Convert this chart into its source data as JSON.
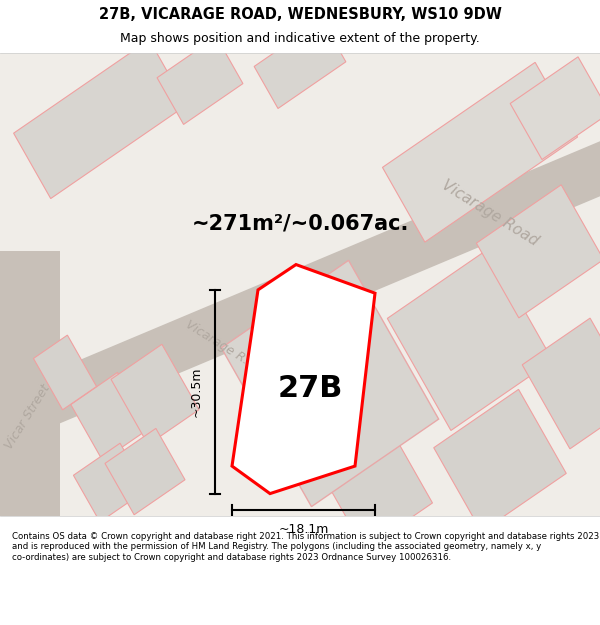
{
  "title_line1": "27B, VICARAGE ROAD, WEDNESBURY, WS10 9DW",
  "title_line2": "Map shows position and indicative extent of the property.",
  "area_label": "~271m²/~0.067ac.",
  "label_27B": "27B",
  "dim_height": "~30.5m",
  "dim_width": "~18.1m",
  "road_label1": "Vicarage Road",
  "road_label2": "Vicar Street",
  "footer_text": "Contains OS data © Crown copyright and database right 2021. This information is subject to Crown copyright and database rights 2023 and is reproduced with the permission of HM Land Registry. The polygons (including the associated geometry, namely x, y co-ordinates) are subject to Crown copyright and database rights 2023 Ordnance Survey 100026316.",
  "bg_color": "#f0ede8",
  "map_bg": "#e8e4df",
  "road_color": "#d0c8c0",
  "block_color": "#d8d4cf",
  "red_color": "#ff0000",
  "pink_color": "#f5b8b8",
  "footer_bg": "#ffffff",
  "title_bg": "#ffffff"
}
